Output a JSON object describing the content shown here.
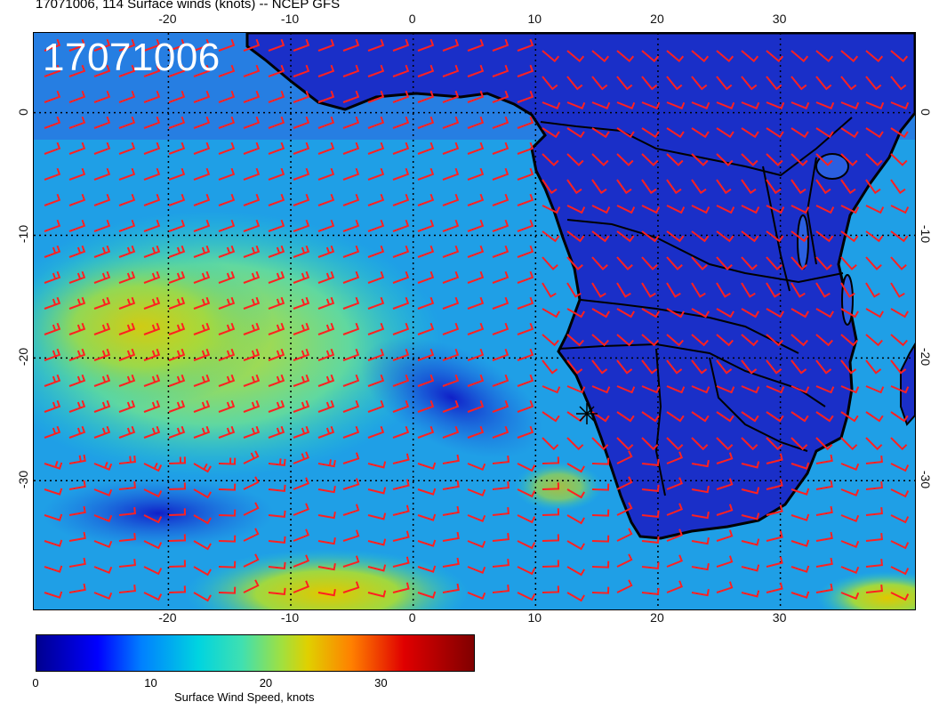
{
  "title": "17071006, 114 Surface winds (knots) -- NCEP GFS",
  "stamp": "17071006",
  "longitude_ticks": [
    "-20",
    "-10",
    "0",
    "10",
    "20",
    "30"
  ],
  "latitude_ticks": [
    "0",
    "-10",
    "-20",
    "-30"
  ],
  "colorbar": {
    "label": "Surface Wind Speed, knots",
    "ticks": [
      "0",
      "10",
      "20",
      "30"
    ],
    "range": [
      0,
      38
    ],
    "colors": [
      "#00008f",
      "#0000ff",
      "#0080ff",
      "#00d4e0",
      "#40e0b0",
      "#a0e040",
      "#e0d000",
      "#ff8000",
      "#e00000",
      "#800000"
    ]
  },
  "map": {
    "lon_range": [
      -31,
      41
    ],
    "lat_range": [
      -40.5,
      6.5
    ],
    "barb_color": "#ff2020",
    "coast_color": "#000000"
  }
}
